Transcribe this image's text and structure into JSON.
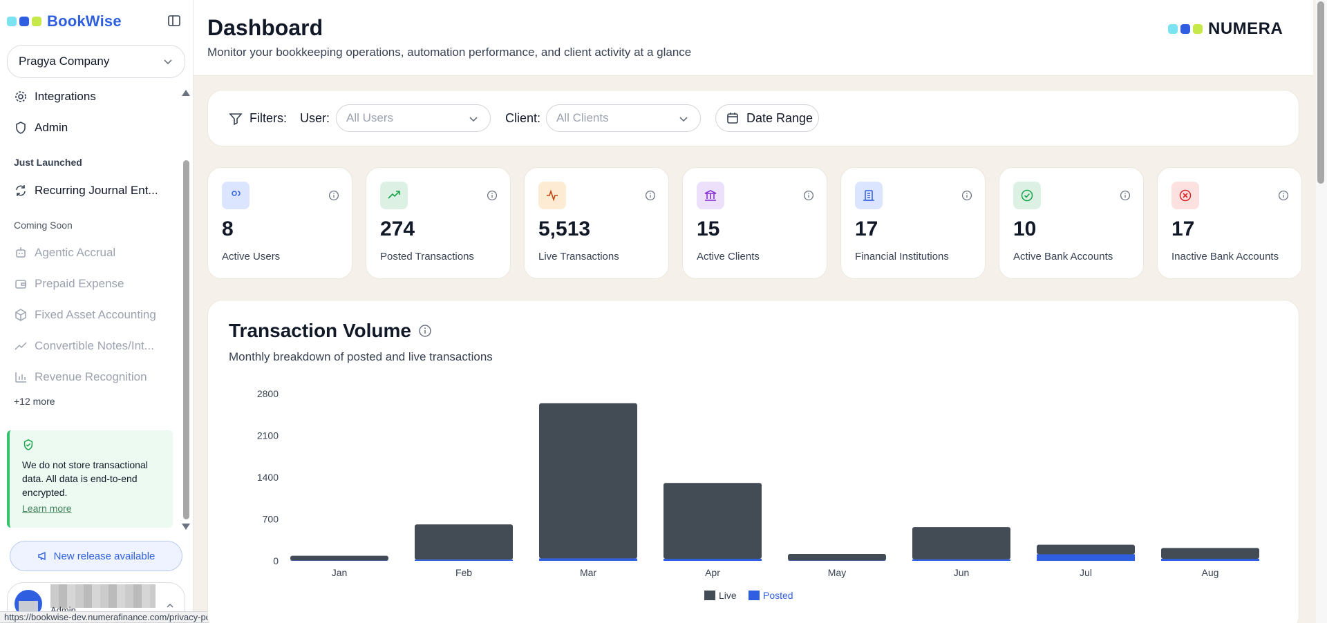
{
  "sidebar": {
    "brand": "BookWise",
    "company": "Pragya Company",
    "items": [
      {
        "label": "Integrations",
        "icon": "gear-icon"
      },
      {
        "label": "Admin",
        "icon": "shield-icon"
      }
    ],
    "just_launched_label": "Just Launched",
    "just_launched": [
      {
        "label": "Recurring Journal Ent...",
        "icon": "refresh-icon"
      }
    ],
    "coming_soon_label": "Coming Soon",
    "coming_soon": [
      {
        "label": "Agentic Accrual",
        "icon": "robot-icon"
      },
      {
        "label": "Prepaid Expense",
        "icon": "wallet-icon"
      },
      {
        "label": "Fixed Asset Accounting",
        "icon": "box-icon"
      },
      {
        "label": "Convertible Notes/Int...",
        "icon": "trend-icon"
      },
      {
        "label": "Revenue Recognition",
        "icon": "bar-chart-icon"
      }
    ],
    "more_label": "+12 more",
    "secure_text": "We do not store transactional data. All data is end-to-end encrypted.",
    "secure_link": "Learn more",
    "release_label": "New release available",
    "user_role": "Admin"
  },
  "status_url": "https://bookwise-dev.numerafinance.com/privacy-policy",
  "header": {
    "title": "Dashboard",
    "subtitle": "Monitor your bookkeeping operations, automation performance, and client activity at a glance",
    "logo_text": "NUMERA"
  },
  "filters": {
    "label": "Filters:",
    "user_label": "User:",
    "user_value": "All Users",
    "client_label": "Client:",
    "client_value": "All Clients",
    "date_label": "Date Range"
  },
  "stats": [
    {
      "value": "8",
      "label": "Active Users",
      "icon": "users-icon",
      "color": "#2f5fe0",
      "bg": "#dbe5ff"
    },
    {
      "value": "274",
      "label": "Posted Transactions",
      "icon": "trending-up-icon",
      "color": "#16a34a",
      "bg": "#dcf1e4"
    },
    {
      "value": "5,513",
      "label": "Live Transactions",
      "icon": "activity-icon",
      "color": "#c2410c",
      "bg": "#fdecd3"
    },
    {
      "value": "15",
      "label": "Active Clients",
      "icon": "bank-icon",
      "color": "#7e22ce",
      "bg": "#ece0fb"
    },
    {
      "value": "17",
      "label": "Financial Institutions",
      "icon": "building-icon",
      "color": "#2f5fe0",
      "bg": "#dbe5ff"
    },
    {
      "value": "10",
      "label": "Active Bank Accounts",
      "icon": "check-circle-icon",
      "color": "#16a34a",
      "bg": "#dcf1e4"
    },
    {
      "value": "17",
      "label": "Inactive Bank Accounts",
      "icon": "x-circle-icon",
      "color": "#dc2626",
      "bg": "#fde0e0"
    }
  ],
  "chart": {
    "title": "Transaction Volume",
    "subtitle": "Monthly breakdown of posted and live transactions"
  },
  "chart_data": {
    "type": "bar",
    "stacked": true,
    "categories": [
      "Jan",
      "Feb",
      "Mar",
      "Apr",
      "May",
      "Jun",
      "Jul",
      "Aug"
    ],
    "series": [
      {
        "name": "Live",
        "color": "#434b55",
        "values": [
          80,
          590,
          2600,
          1270,
          110,
          540,
          160,
          180
        ]
      },
      {
        "name": "Posted",
        "color": "#2f5fe0",
        "values": [
          5,
          20,
          40,
          35,
          5,
          25,
          110,
          35
        ]
      }
    ],
    "ylim": [
      0,
      2800
    ],
    "yticks": [
      0,
      700,
      1400,
      2100,
      2800
    ],
    "legend": "bottom-center"
  }
}
